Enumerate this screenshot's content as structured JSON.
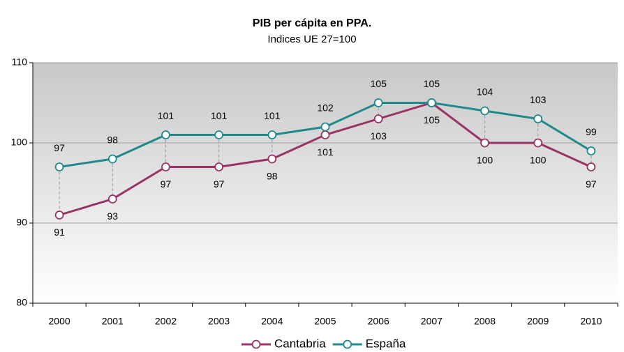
{
  "chart_data": {
    "type": "line",
    "title": "PIB per cápita en PPA.",
    "subtitle": "Indices UE 27=100",
    "categories": [
      "2000",
      "2001",
      "2002",
      "2003",
      "2004",
      "2005",
      "2006",
      "2007",
      "2008",
      "2009",
      "2010"
    ],
    "series": [
      {
        "name": "Cantabria",
        "color": "#993366",
        "values": [
          91,
          93,
          97,
          97,
          98,
          101,
          103,
          105,
          100,
          100,
          97
        ],
        "label_position": "below"
      },
      {
        "name": "España",
        "color": "#1f8a8a",
        "values": [
          97,
          98,
          101,
          101,
          101,
          102,
          105,
          105,
          104,
          103,
          99
        ],
        "label_position": "above"
      }
    ],
    "ylim": [
      80,
      110
    ],
    "yticks": [
      80,
      90,
      100,
      110
    ],
    "grid": true,
    "high_low_lines": true,
    "legend": "bottom"
  }
}
